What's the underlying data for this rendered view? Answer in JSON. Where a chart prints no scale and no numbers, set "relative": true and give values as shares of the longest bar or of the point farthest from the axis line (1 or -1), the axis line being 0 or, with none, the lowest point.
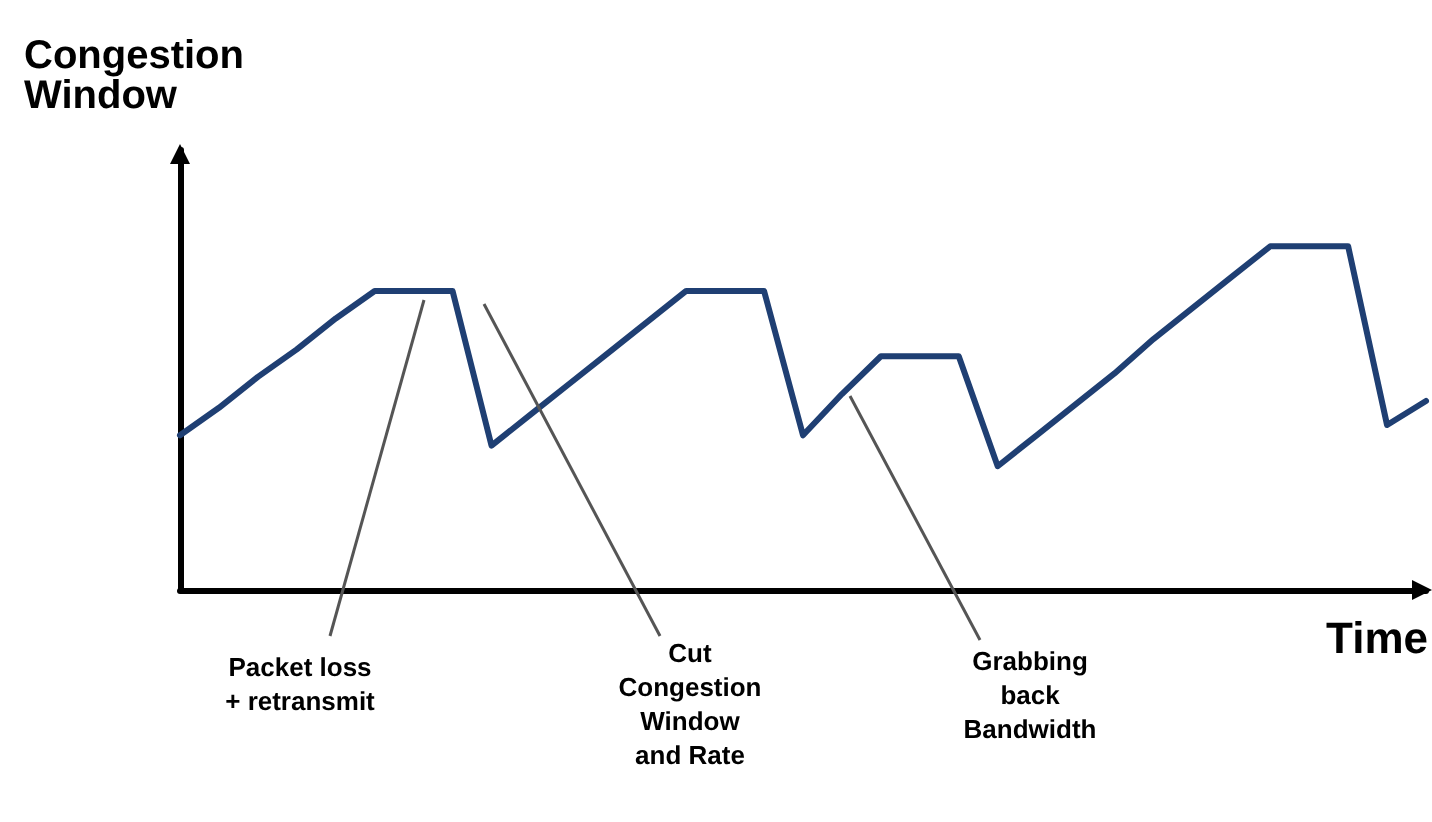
{
  "chart_data": {
    "type": "line",
    "relative": true,
    "xlabel": "Time",
    "ylabel": "Congestion\nWindow",
    "categories": [
      null,
      null,
      null,
      null,
      null,
      null,
      null,
      null,
      null,
      null,
      null,
      null,
      null,
      null,
      null,
      null,
      null,
      null,
      null,
      null,
      null,
      null,
      null,
      null,
      null,
      null,
      null,
      null,
      null,
      null,
      null,
      null,
      null
    ],
    "series": [
      {
        "color": "#1f3f73",
        "values": [
          0.45,
          0.53,
          0.62,
          0.7,
          0.79,
          0.87,
          0.87,
          0.87,
          0.42,
          0.51,
          0.6,
          0.69,
          0.78,
          0.87,
          0.87,
          0.87,
          0.45,
          0.57,
          0.68,
          0.68,
          0.68,
          0.36,
          0.45,
          0.54,
          0.63,
          0.73,
          0.82,
          0.91,
          1,
          1,
          1,
          0.48,
          0.55
        ]
      }
    ],
    "annotations": [
      "Packet loss\n+ retransmit",
      "Cut\nCongestion\nWindow\nand Rate",
      "Grabbing\nback\nBandwidth"
    ],
    "grid": false,
    "marker": "none",
    "line_style": "solid"
  }
}
